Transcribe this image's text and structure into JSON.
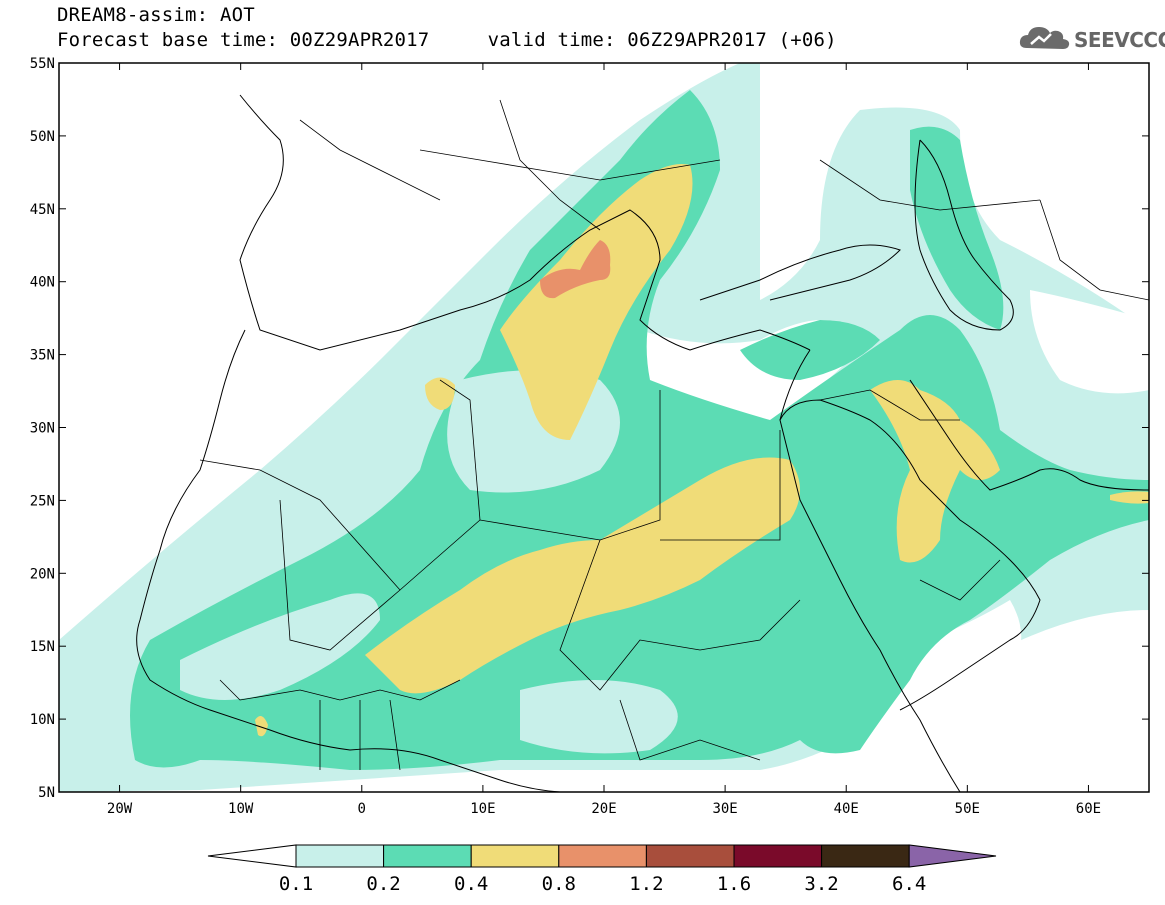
{
  "header": {
    "line1": "DREAM8-assim: AOT",
    "line2": "Forecast base time: 00Z29APR2017     valid time: 06Z29APR2017 (+06)"
  },
  "logo": {
    "text": "SEEVCCC",
    "icon": "cloud-icon",
    "color": "#6b6b6b"
  },
  "map": {
    "lon_range": [
      -25,
      65
    ],
    "lat_range": [
      5,
      55
    ],
    "lon_ticks": [
      {
        "lon": -20,
        "label": "20W"
      },
      {
        "lon": -10,
        "label": "10W"
      },
      {
        "lon": 0,
        "label": "0"
      },
      {
        "lon": 10,
        "label": "10E"
      },
      {
        "lon": 20,
        "label": "20E"
      },
      {
        "lon": 30,
        "label": "30E"
      },
      {
        "lon": 40,
        "label": "40E"
      },
      {
        "lon": 50,
        "label": "50E"
      },
      {
        "lon": 60,
        "label": "60E"
      }
    ],
    "lat_ticks": [
      {
        "lat": 55,
        "label": "55N"
      },
      {
        "lat": 50,
        "label": "50N"
      },
      {
        "lat": 45,
        "label": "45N"
      },
      {
        "lat": 40,
        "label": "40N"
      },
      {
        "lat": 35,
        "label": "35N"
      },
      {
        "lat": 30,
        "label": "30N"
      },
      {
        "lat": 25,
        "label": "25N"
      },
      {
        "lat": 20,
        "label": "20N"
      },
      {
        "lat": 15,
        "label": "15N"
      },
      {
        "lat": 10,
        "label": "10N"
      },
      {
        "lat": 5,
        "label": "5N"
      }
    ]
  },
  "colorbar": {
    "levels": [
      "0.1",
      "0.2",
      "0.4",
      "0.8",
      "1.2",
      "1.6",
      "3.2",
      "6.4"
    ],
    "colors": [
      "#ffffff",
      "#c8f0ea",
      "#5cdcb4",
      "#f0dc78",
      "#e8916a",
      "#a84e3c",
      "#7a0a2a",
      "#3a2814",
      "#8a64a8"
    ]
  }
}
